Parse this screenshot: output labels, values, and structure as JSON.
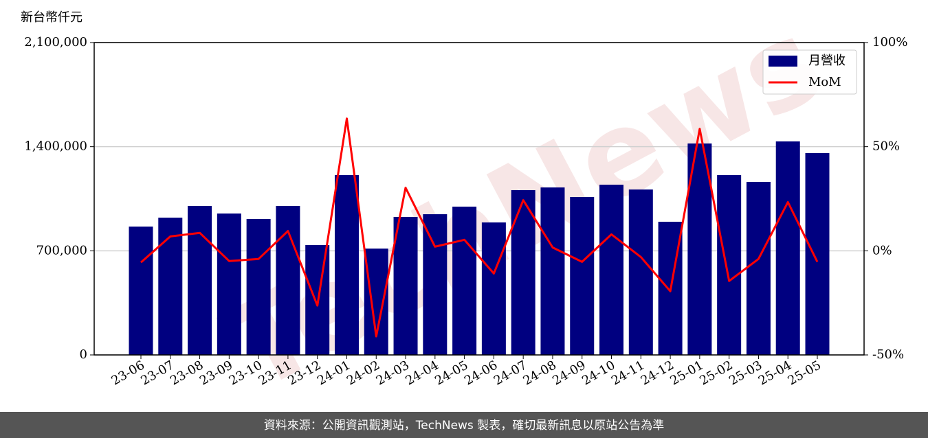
{
  "chart_data": {
    "type": "bar",
    "y_axis_label": "新台幣仟元",
    "watermark": "TechNews",
    "source": "資料來源：公開資訊觀測站，TechNews 製表，確切最新訊息以原站公告為準",
    "categories": [
      "23-06",
      "23-07",
      "23-08",
      "23-09",
      "23-10",
      "23-11",
      "23-12",
      "24-01",
      "24-02",
      "24-03",
      "24-04",
      "24-05",
      "24-06",
      "24-07",
      "24-08",
      "24-09",
      "24-10",
      "24-11",
      "24-12",
      "25-01",
      "25-02",
      "25-03",
      "25-04",
      "25-05"
    ],
    "series": [
      {
        "name": "月營收",
        "type": "bar",
        "color": "#000080",
        "values": [
          863000,
          923000,
          1001500,
          950800,
          913800,
          1001500,
          738500,
          1209000,
          715000,
          927700,
          946000,
          997000,
          890700,
          1107700,
          1126000,
          1061500,
          1144600,
          1112300,
          895400,
          1421500,
          1209000,
          1163000,
          1435400,
          1356900
        ]
      },
      {
        "name": "MoM",
        "type": "line",
        "axis": "y2",
        "color": "#ff0000",
        "values": [
          -5.6,
          6.9,
          8.6,
          -4.9,
          -3.9,
          9.5,
          -26.3,
          63.5,
          -41.1,
          30.3,
          2.0,
          5.3,
          -10.9,
          24.3,
          1.6,
          -5.3,
          7.9,
          -3.0,
          -19.4,
          58.6,
          -14.5,
          -3.9,
          23.4,
          -5.3
        ]
      }
    ],
    "ylim": [
      0,
      2100000
    ],
    "yticks": [
      0,
      {
        "value": 700000,
        "label": "700,000"
      },
      {
        "value": 1400000,
        "label": "1,400,000"
      },
      {
        "value": 2100000,
        "label": "2,100,000"
      }
    ],
    "y2lim": [
      -50,
      100
    ],
    "y2ticks": [
      {
        "value": -50,
        "label": "-50%"
      },
      {
        "value": 0,
        "label": "0%"
      },
      {
        "value": 50,
        "label": "50%"
      },
      {
        "value": 100,
        "label": "100%"
      }
    ],
    "grid": true,
    "legend": "upper right"
  }
}
